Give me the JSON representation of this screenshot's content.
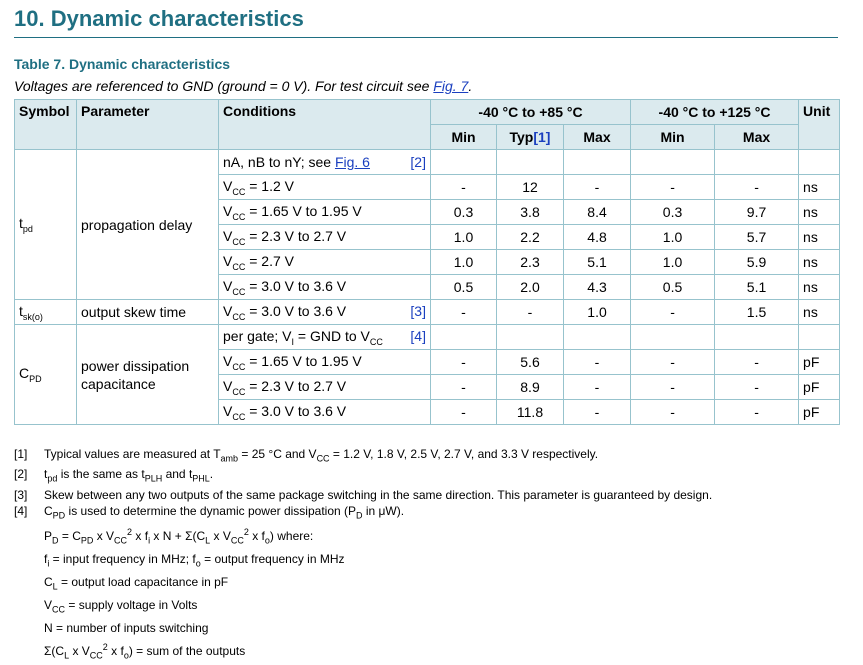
{
  "heading": "10.  Dynamic characteristics",
  "table_title": "Table 7. Dynamic characteristics",
  "subtitle_text": "Voltages are referenced to GND (ground = 0 V). For test circuit see ",
  "subtitle_link": "Fig. 7",
  "subtitle_end": ".",
  "headers": {
    "symbol": "Symbol",
    "parameter": "Parameter",
    "conditions": "Conditions",
    "range1": "-40 °C to +85 °C",
    "range2": "-40 °C to +125 °C",
    "unit": "Unit",
    "min": "Min",
    "typ": "Typ",
    "typ_ref": "[1]",
    "max": "Max",
    "min2": "Min",
    "max2": "Max"
  },
  "rows": {
    "tpd_sym": "t",
    "tpd_sub": "pd",
    "tpd_param": "propagation delay",
    "tpd_cond": "nA, nB to nY; see ",
    "tpd_link": "Fig. 6",
    "tpd_ref": "[2]",
    "tpd_r1_cond": "= 1.2 V",
    "tpd_r1": [
      "-",
      "12",
      "-",
      "-",
      "-",
      "ns"
    ],
    "tpd_r2_cond": "= 1.65 V to 1.95 V",
    "tpd_r2": [
      "0.3",
      "3.8",
      "8.4",
      "0.3",
      "9.7",
      "ns"
    ],
    "tpd_r3_cond": "= 2.3 V to 2.7 V",
    "tpd_r3": [
      "1.0",
      "2.2",
      "4.8",
      "1.0",
      "5.7",
      "ns"
    ],
    "tpd_r4_cond": "= 2.7 V",
    "tpd_r4": [
      "1.0",
      "2.3",
      "5.1",
      "1.0",
      "5.9",
      "ns"
    ],
    "tpd_r5_cond": "= 3.0 V to 3.6 V",
    "tpd_r5": [
      "0.5",
      "2.0",
      "4.3",
      "0.5",
      "5.1",
      "ns"
    ],
    "tsk_sym": "t",
    "tsk_sub": "sk(o)",
    "tsk_param": "output skew time",
    "tsk_cond": "= 3.0 V to 3.6 V",
    "tsk_ref": "[3]",
    "tsk_vals": [
      "-",
      "-",
      "1.0",
      "-",
      "1.5",
      "ns"
    ],
    "cpd_sym": "C",
    "cpd_sub": "PD",
    "cpd_param": "power dissipation capacitance",
    "cpd_cond_a": "per gate; V",
    "cpd_cond_sub": "I",
    "cpd_cond_b": " = GND to V",
    "cpd_ref": "[4]",
    "cpd_r1_cond": "= 1.65 V to 1.95 V",
    "cpd_r1": [
      "-",
      "5.6",
      "-",
      "-",
      "-",
      "pF"
    ],
    "cpd_r2_cond": "= 2.3 V to 2.7 V",
    "cpd_r2": [
      "-",
      "8.9",
      "-",
      "-",
      "-",
      "pF"
    ],
    "cpd_r3_cond": "= 3.0 V to 3.6 V",
    "cpd_r3": [
      "-",
      "11.8",
      "-",
      "-",
      "-",
      "pF"
    ]
  },
  "v": "V",
  "cc": "CC",
  "notes": {
    "n1": "[1]",
    "n1_a": "Typical values are measured at T",
    "n1_sub": "amb",
    "n1_b": " = 25 °C and V",
    "n1_c": " = 1.2 V, 1.8 V, 2.5 V, 2.7 V, and 3.3 V respectively.",
    "n2": "[2]",
    "n2_a": "t",
    "n2_sub": "pd",
    "n2_b": " is the same as t",
    "n2_sub2": "PLH",
    "n2_c": " and t",
    "n2_sub3": "PHL",
    "n2_d": ".",
    "n3": "[3]",
    "n3_text": "Skew between any two outputs of the same package switching in the same direction. This parameter is guaranteed by design.",
    "n4": "[4]",
    "n4_a": "C",
    "n4_sub": "PD",
    "n4_b": " is used to determine the dynamic power dissipation (P",
    "n4_sub2": "D",
    "n4_c": " in μW).",
    "f1": "P",
    "f1_sub": "D",
    "f1_b": " = C",
    "f1_sub2": "PD",
    "f1_c": " x V",
    "f1_sup": "2",
    "f1_d": " x f",
    "f1_sub3": "i",
    "f1_e": " x N + Σ(C",
    "f1_sub4": "L",
    "f1_f": " x V",
    "f1_sup2": "2",
    "f1_g": " x f",
    "f1_sub5": "o",
    "f1_h": ") where:",
    "f2_a": "f",
    "f2_sub": "i",
    "f2_b": " = input frequency in MHz; f",
    "f2_sub2": "o",
    "f2_c": " = output frequency in MHz",
    "f3_a": "C",
    "f3_sub": "L",
    "f3_b": " = output load capacitance in pF",
    "f4_a": "V",
    "f4_sub": "CC",
    "f4_b": " = supply voltage in Volts",
    "f5": "N = number of inputs switching",
    "f6_a": "Σ(C",
    "f6_sub": "L",
    "f6_b": " x V",
    "f6_sup": "2",
    "f6_c": " x f",
    "f6_sub2": "o",
    "f6_d": ") = sum of the outputs"
  }
}
